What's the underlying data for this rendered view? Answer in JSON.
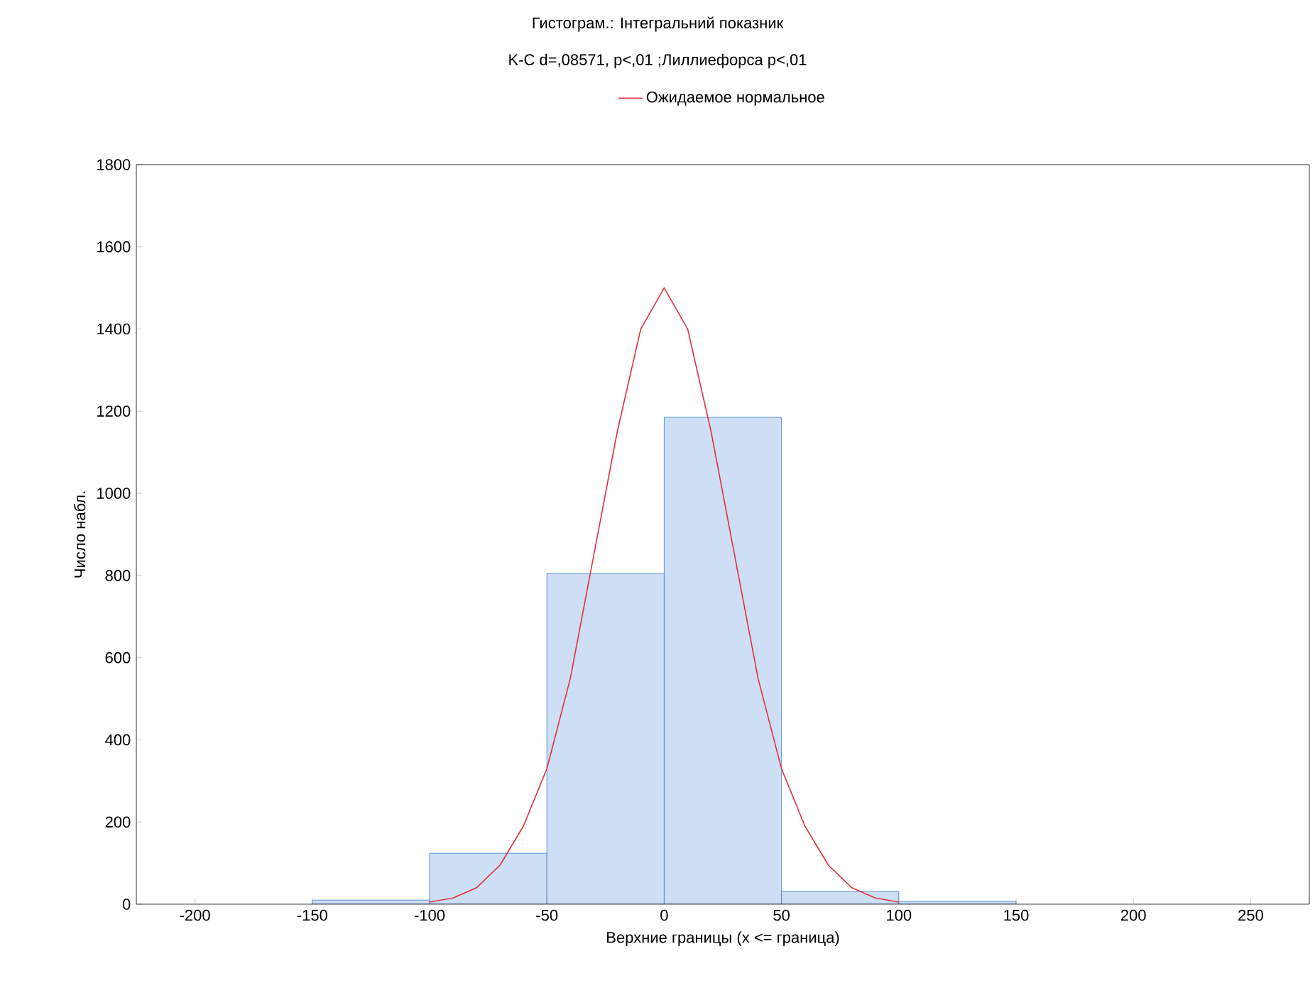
{
  "chart_data": {
    "type": "histogram",
    "title": "Гистограм.: Інтегральний показник",
    "subtitle": "K-C d=,08571, p<,01 ;Лиллиефорса p<,01",
    "xlabel": "Верхние границы (x <= граница)",
    "ylabel": "Число набл.",
    "bins": [
      -150,
      -100,
      -50,
      0,
      50,
      100,
      150
    ],
    "values": [
      10,
      124,
      805,
      1185,
      31,
      7
    ],
    "color": "#3a7bd5",
    "series": [
      {
        "name": "Ожидаемое нормальное",
        "type": "line",
        "color": "#e0303c",
        "x": [
          -100,
          -90,
          -80,
          -70,
          -60,
          -50,
          -40,
          -30,
          -20,
          -10,
          0,
          10,
          20,
          30,
          40,
          50,
          60,
          70,
          80,
          90,
          100
        ],
        "values": [
          5,
          15,
          40,
          95,
          190,
          330,
          550,
          850,
          1150,
          1400,
          1500,
          1400,
          1150,
          850,
          550,
          330,
          190,
          95,
          40,
          15,
          5
        ]
      }
    ],
    "xlim": [
      -225,
      275
    ],
    "ylim": [
      0,
      1800
    ],
    "xticks": [
      -200,
      -150,
      -100,
      -50,
      0,
      50,
      100,
      150,
      200,
      250
    ],
    "yticks": [
      0,
      200,
      400,
      600,
      800,
      1000,
      1200,
      1400,
      1600,
      1800
    ],
    "legend": "top"
  }
}
